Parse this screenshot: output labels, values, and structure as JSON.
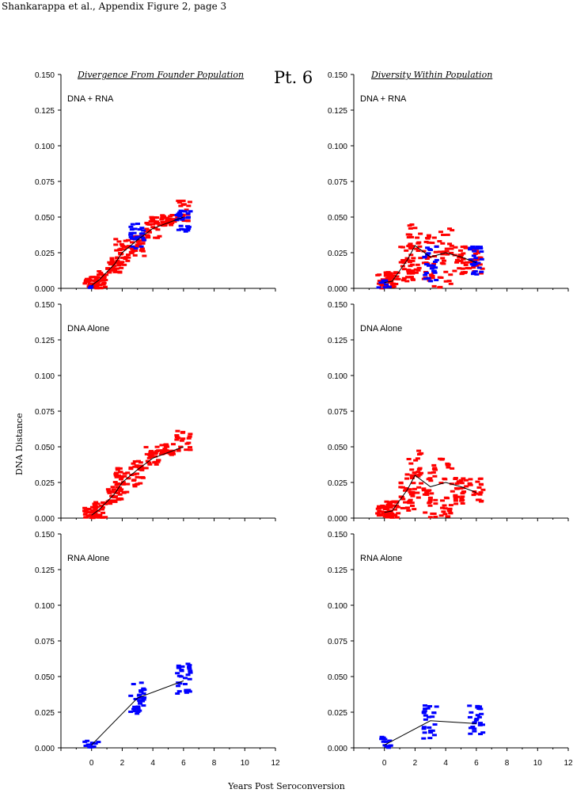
{
  "header": {
    "citation": "Shankarappa et al., Appendix Figure 2, page  3",
    "patient_label": "Pt. 6",
    "left_title": "Divergence From Founder Population",
    "right_title": "Diversity Within Population",
    "y_axis_label": "DNA Distance",
    "x_axis_label": "Years Post Seroconversion"
  },
  "chart_data": [
    {
      "type": "scatter",
      "panel": "Divergence / DNA + RNA",
      "label": "DNA + RNA",
      "xlim": [
        -2,
        12
      ],
      "ylim": [
        0,
        0.15
      ],
      "x_ticks": [
        0,
        2,
        4,
        6,
        8,
        10,
        12
      ],
      "y_ticks": [
        "0.000",
        "0.025",
        "0.050",
        "0.075",
        "0.100",
        "0.125",
        "0.150"
      ],
      "series": [
        {
          "color": "#ff0000",
          "clusters": [
            {
              "x": 0.0,
              "y_min": 0.0,
              "y_max": 0.008,
              "count": 30
            },
            {
              "x": 0.5,
              "y_min": 0.0,
              "y_max": 0.012,
              "count": 30
            },
            {
              "x": 1.5,
              "y_min": 0.01,
              "y_max": 0.022,
              "count": 30
            },
            {
              "x": 2.0,
              "y_min": 0.016,
              "y_max": 0.035,
              "count": 30
            },
            {
              "x": 3.0,
              "y_min": 0.022,
              "y_max": 0.04,
              "count": 30
            },
            {
              "x": 4.0,
              "y_min": 0.035,
              "y_max": 0.05,
              "count": 30
            },
            {
              "x": 5.0,
              "y_min": 0.044,
              "y_max": 0.052,
              "count": 30
            },
            {
              "x": 6.0,
              "y_min": 0.045,
              "y_max": 0.062,
              "count": 20
            }
          ]
        },
        {
          "color": "#0000ff",
          "clusters": [
            {
              "x": 0.0,
              "y_min": 0.0,
              "y_max": 0.002,
              "count": 3
            },
            {
              "x": 3.0,
              "y_min": 0.028,
              "y_max": 0.046,
              "count": 25
            },
            {
              "x": 6.0,
              "y_min": 0.038,
              "y_max": 0.056,
              "count": 25
            }
          ]
        }
      ],
      "mean_line": {
        "x": [
          0,
          0.5,
          1.5,
          2,
          3,
          4,
          5,
          6
        ],
        "y": [
          0.002,
          0.006,
          0.017,
          0.025,
          0.034,
          0.042,
          0.046,
          0.05
        ]
      }
    },
    {
      "type": "scatter",
      "panel": "Diversity / DNA + RNA",
      "label": "DNA + RNA",
      "xlim": [
        -2,
        12
      ],
      "ylim": [
        0,
        0.15
      ],
      "x_ticks": [
        0,
        2,
        4,
        6,
        8,
        10,
        12
      ],
      "y_ticks": [
        "0.000",
        "0.025",
        "0.050",
        "0.075",
        "0.100",
        "0.125",
        "0.150"
      ],
      "series": [
        {
          "color": "#ff0000",
          "clusters": [
            {
              "x": 0.0,
              "y_min": 0.0,
              "y_max": 0.01,
              "count": 30
            },
            {
              "x": 0.5,
              "y_min": 0.0,
              "y_max": 0.012,
              "count": 30
            },
            {
              "x": 1.5,
              "y_min": 0.005,
              "y_max": 0.032,
              "count": 30
            },
            {
              "x": 2.0,
              "y_min": 0.01,
              "y_max": 0.048,
              "count": 30
            },
            {
              "x": 3.0,
              "y_min": 0.0,
              "y_max": 0.038,
              "count": 30
            },
            {
              "x": 4.0,
              "y_min": 0.0,
              "y_max": 0.042,
              "count": 30
            },
            {
              "x": 5.0,
              "y_min": 0.01,
              "y_max": 0.03,
              "count": 30
            },
            {
              "x": 6.0,
              "y_min": 0.01,
              "y_max": 0.028,
              "count": 20
            }
          ]
        },
        {
          "color": "#0000ff",
          "clusters": [
            {
              "x": 0.0,
              "y_min": 0.0,
              "y_max": 0.006,
              "count": 8
            },
            {
              "x": 3.0,
              "y_min": 0.005,
              "y_max": 0.03,
              "count": 25
            },
            {
              "x": 6.0,
              "y_min": 0.008,
              "y_max": 0.03,
              "count": 25
            }
          ]
        }
      ],
      "mean_line": {
        "x": [
          0,
          0.5,
          1.5,
          2,
          3,
          4,
          5,
          6
        ],
        "y": [
          0.004,
          0.005,
          0.02,
          0.03,
          0.022,
          0.025,
          0.022,
          0.018
        ]
      }
    },
    {
      "type": "scatter",
      "panel": "Divergence / DNA Alone",
      "label": "DNA Alone",
      "xlim": [
        -2,
        12
      ],
      "ylim": [
        0,
        0.15
      ],
      "x_ticks": [
        0,
        2,
        4,
        6,
        8,
        10,
        12
      ],
      "y_ticks": [
        "0.000",
        "0.025",
        "0.050",
        "0.075",
        "0.100",
        "0.125",
        "0.150"
      ],
      "series": [
        {
          "color": "#ff0000",
          "clusters": [
            {
              "x": 0.0,
              "y_min": 0.0,
              "y_max": 0.008,
              "count": 30
            },
            {
              "x": 0.5,
              "y_min": 0.0,
              "y_max": 0.012,
              "count": 30
            },
            {
              "x": 1.5,
              "y_min": 0.01,
              "y_max": 0.022,
              "count": 30
            },
            {
              "x": 2.0,
              "y_min": 0.016,
              "y_max": 0.035,
              "count": 30
            },
            {
              "x": 3.0,
              "y_min": 0.022,
              "y_max": 0.04,
              "count": 30
            },
            {
              "x": 4.0,
              "y_min": 0.035,
              "y_max": 0.05,
              "count": 30
            },
            {
              "x": 5.0,
              "y_min": 0.044,
              "y_max": 0.052,
              "count": 30
            },
            {
              "x": 6.0,
              "y_min": 0.045,
              "y_max": 0.062,
              "count": 20
            }
          ]
        }
      ],
      "mean_line": {
        "x": [
          0,
          0.5,
          1.5,
          2,
          3,
          4,
          5,
          6
        ],
        "y": [
          0.002,
          0.006,
          0.017,
          0.025,
          0.034,
          0.042,
          0.046,
          0.05
        ]
      }
    },
    {
      "type": "scatter",
      "panel": "Diversity / DNA Alone",
      "label": "DNA Alone",
      "xlim": [
        -2,
        12
      ],
      "ylim": [
        0,
        0.15
      ],
      "x_ticks": [
        0,
        2,
        4,
        6,
        8,
        10,
        12
      ],
      "y_ticks": [
        "0.000",
        "0.025",
        "0.050",
        "0.075",
        "0.100",
        "0.125",
        "0.150"
      ],
      "series": [
        {
          "color": "#ff0000",
          "clusters": [
            {
              "x": 0.0,
              "y_min": 0.0,
              "y_max": 0.01,
              "count": 30
            },
            {
              "x": 0.5,
              "y_min": 0.0,
              "y_max": 0.012,
              "count": 30
            },
            {
              "x": 1.5,
              "y_min": 0.005,
              "y_max": 0.032,
              "count": 30
            },
            {
              "x": 2.0,
              "y_min": 0.01,
              "y_max": 0.048,
              "count": 30
            },
            {
              "x": 3.0,
              "y_min": 0.0,
              "y_max": 0.038,
              "count": 30
            },
            {
              "x": 4.0,
              "y_min": 0.0,
              "y_max": 0.042,
              "count": 30
            },
            {
              "x": 5.0,
              "y_min": 0.01,
              "y_max": 0.03,
              "count": 30
            },
            {
              "x": 6.0,
              "y_min": 0.01,
              "y_max": 0.028,
              "count": 20
            }
          ]
        }
      ],
      "mean_line": {
        "x": [
          0,
          0.5,
          1.5,
          2,
          3,
          4,
          5,
          6
        ],
        "y": [
          0.004,
          0.005,
          0.02,
          0.03,
          0.022,
          0.025,
          0.022,
          0.018
        ]
      }
    },
    {
      "type": "scatter",
      "panel": "Divergence / RNA Alone",
      "label": "RNA Alone",
      "xlim": [
        -2,
        12
      ],
      "ylim": [
        0,
        0.15
      ],
      "x_ticks": [
        0,
        2,
        4,
        6,
        8,
        10,
        12
      ],
      "y_ticks": [
        "0.000",
        "0.025",
        "0.050",
        "0.075",
        "0.100",
        "0.125",
        "0.150"
      ],
      "series": [
        {
          "color": "#0000ff",
          "clusters": [
            {
              "x": 0.0,
              "y_min": 0.0,
              "y_max": 0.008,
              "count": 12
            },
            {
              "x": 3.0,
              "y_min": 0.024,
              "y_max": 0.046,
              "count": 30
            },
            {
              "x": 6.0,
              "y_min": 0.038,
              "y_max": 0.06,
              "count": 30
            }
          ]
        }
      ],
      "mean_line": {
        "x": [
          0,
          3,
          6
        ],
        "y": [
          0.002,
          0.035,
          0.047
        ]
      }
    },
    {
      "type": "scatter",
      "panel": "Diversity / RNA Alone",
      "label": "RNA Alone",
      "xlim": [
        -2,
        12
      ],
      "ylim": [
        0,
        0.15
      ],
      "x_ticks": [
        0,
        2,
        4,
        6,
        8,
        10,
        12
      ],
      "y_ticks": [
        "0.000",
        "0.025",
        "0.050",
        "0.075",
        "0.100",
        "0.125",
        "0.150"
      ],
      "series": [
        {
          "color": "#0000ff",
          "clusters": [
            {
              "x": 0.0,
              "y_min": 0.0,
              "y_max": 0.008,
              "count": 12
            },
            {
              "x": 3.0,
              "y_min": 0.005,
              "y_max": 0.03,
              "count": 25
            },
            {
              "x": 6.0,
              "y_min": 0.008,
              "y_max": 0.03,
              "count": 25
            }
          ]
        }
      ],
      "mean_line": {
        "x": [
          0,
          3,
          6
        ],
        "y": [
          0.002,
          0.019,
          0.017
        ]
      }
    }
  ]
}
